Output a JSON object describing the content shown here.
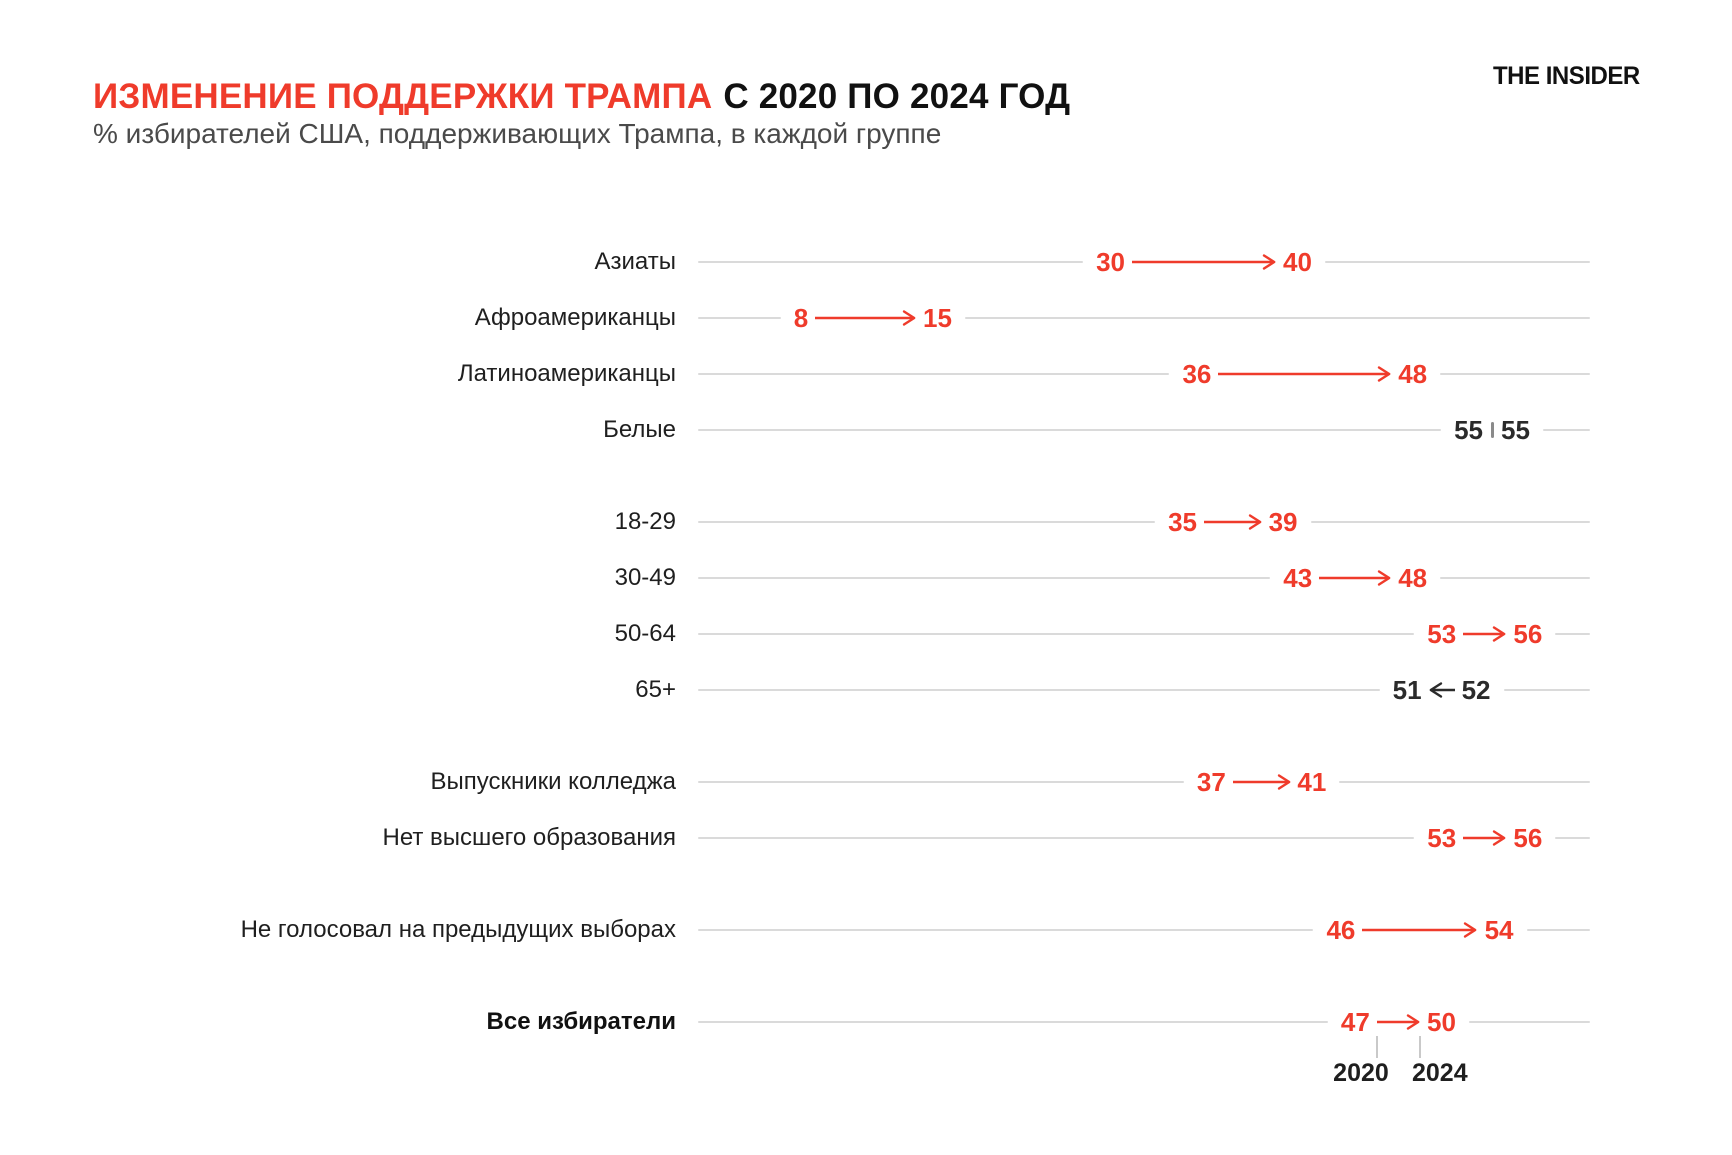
{
  "header": {
    "title_accent": "ИЗМЕНЕНИЕ ПОДДЕРЖКИ ТРАМПА",
    "title_rest": "С 2020 ПО 2024 ГОД",
    "subtitle": "% избирателей США, поддерживающих Трампа, в каждой группе",
    "brand": "THE INSIDER"
  },
  "colors": {
    "accent": "#EF3B2B",
    "neutral": "#2B2B2B",
    "baseline_gray": "#DADADA",
    "subtitle_gray": "#4A4A4A",
    "tick_gray": "#8A8A8A",
    "axis_connector_gray": "#C9C9C9",
    "label_dark": "#1F1F1F"
  },
  "chart_data": {
    "type": "dumbbell-arrow",
    "title": "ИЗМЕНЕНИЕ ПОДДЕРЖКИ ТРАМПА С 2020 ПО 2024 ГОД",
    "subtitle": "% избирателей США, поддерживающих Трампа, в каждой группе",
    "years": [
      "2020",
      "2024"
    ],
    "x_range_hint": [
      0,
      62
    ],
    "legend_position": "bottom-right-under-total-row",
    "groups": [
      {
        "name": "race-ethnicity",
        "rows": [
          {
            "label": "Азиаты",
            "v2020": 30,
            "v2024": 40,
            "highlight": true
          },
          {
            "label": "Афроамериканцы",
            "v2020": 8,
            "v2024": 15,
            "highlight": true
          },
          {
            "label": "Латиноамериканцы",
            "v2020": 36,
            "v2024": 48,
            "highlight": true
          },
          {
            "label": "Белые",
            "v2020": 55,
            "v2024": 55,
            "highlight": false
          }
        ]
      },
      {
        "name": "age",
        "rows": [
          {
            "label": "18-29",
            "v2020": 35,
            "v2024": 39,
            "highlight": true
          },
          {
            "label": "30-49",
            "v2020": 43,
            "v2024": 48,
            "highlight": true
          },
          {
            "label": "50-64",
            "v2020": 53,
            "v2024": 56,
            "highlight": true
          },
          {
            "label": "65+",
            "v2020": 52,
            "v2024": 51,
            "highlight": false
          }
        ]
      },
      {
        "name": "education",
        "rows": [
          {
            "label": "Выпускники колледжа",
            "v2020": 37,
            "v2024": 41,
            "highlight": true
          },
          {
            "label": "Нет высшего образования",
            "v2020": 53,
            "v2024": 56,
            "highlight": true
          }
        ]
      },
      {
        "name": "past-vote",
        "rows": [
          {
            "label": "Не голосовал на предыдущих выборах",
            "v2020": 46,
            "v2024": 54,
            "highlight": true
          }
        ]
      },
      {
        "name": "total",
        "rows": [
          {
            "label": "Все избиратели",
            "v2020": 47,
            "v2024": 50,
            "highlight": true,
            "bold": true,
            "show_year_axis": true
          }
        ]
      }
    ]
  }
}
